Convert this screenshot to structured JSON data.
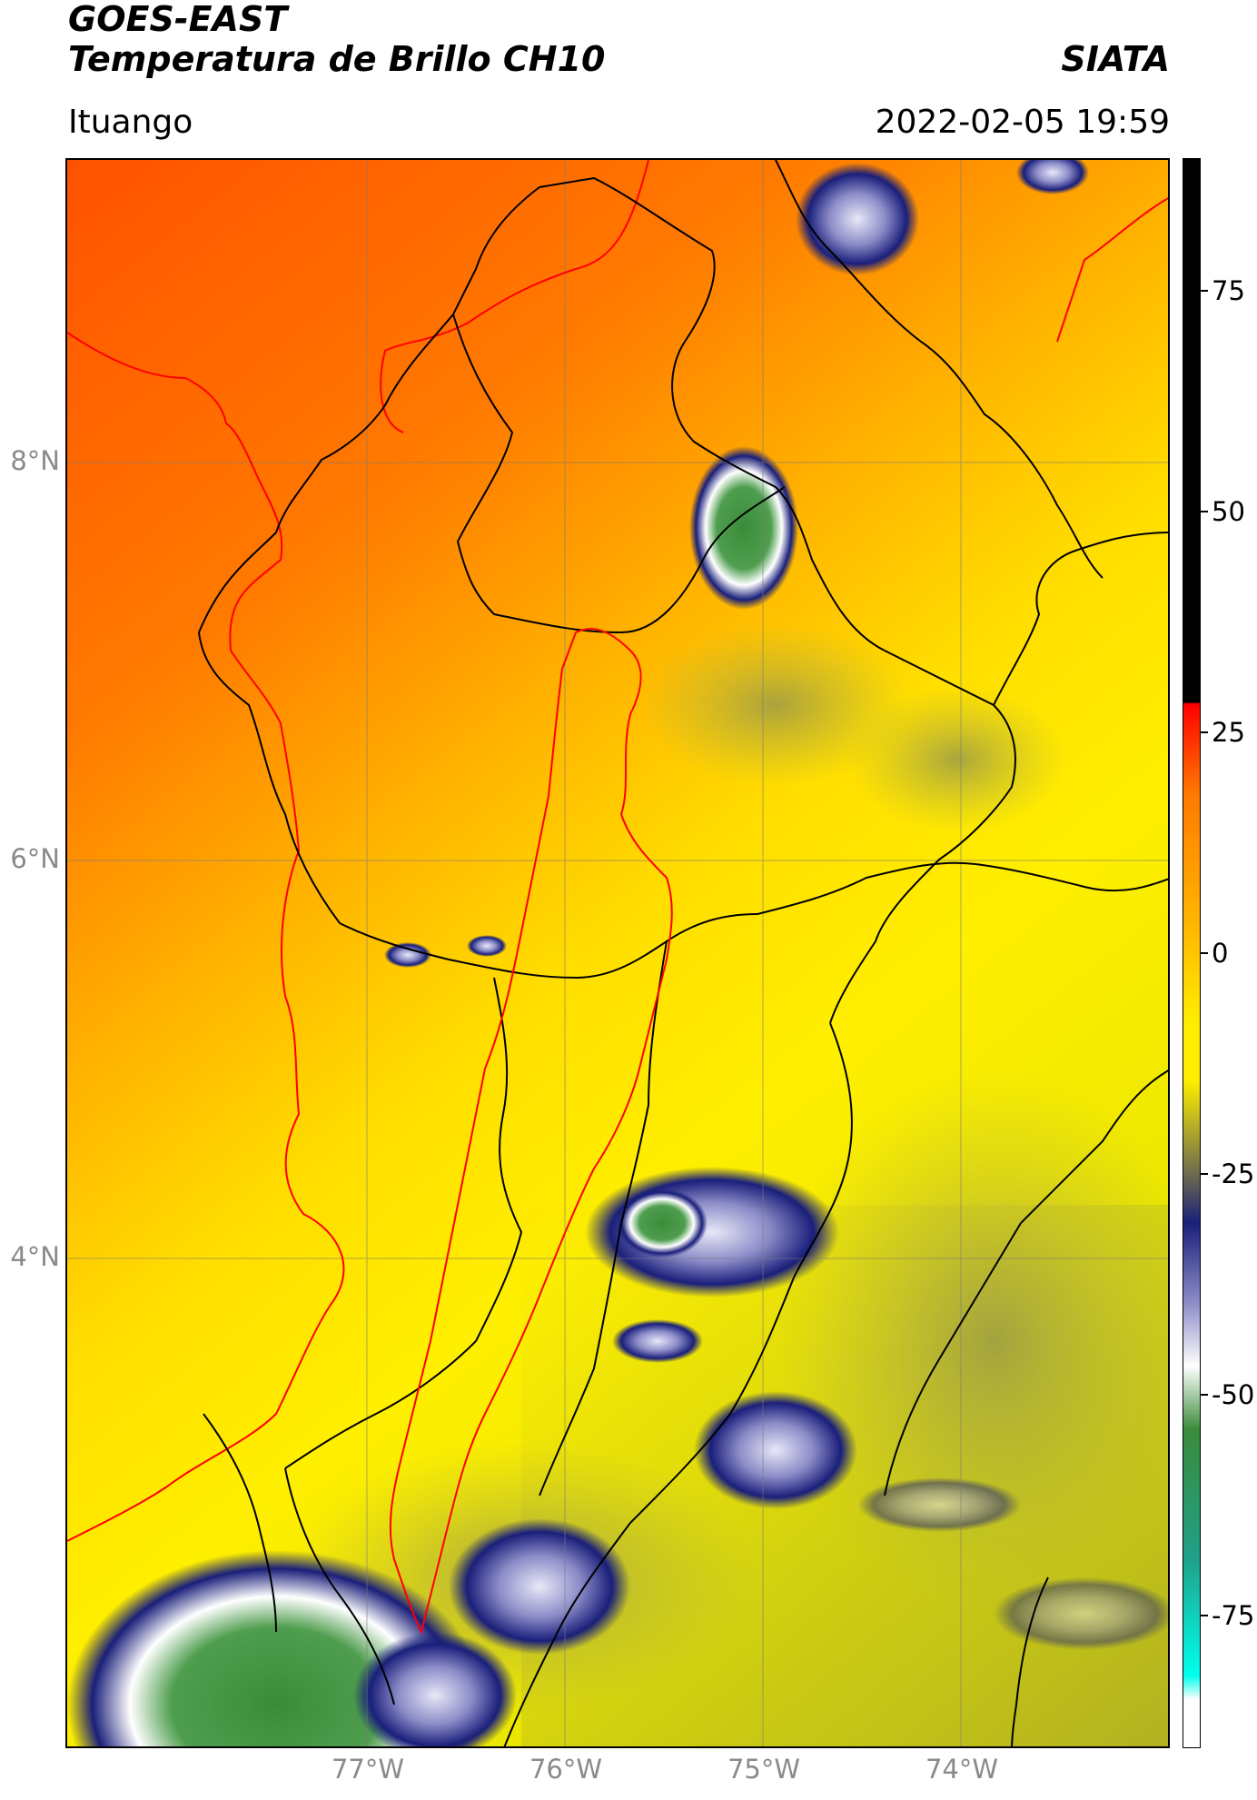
{
  "header": {
    "title_line1": "GOES-EAST",
    "title_line2": "Temperatura de Brillo CH10",
    "organization": "SIATA",
    "region": "Ituango",
    "timestamp": "2022-02-05 19:59"
  },
  "map": {
    "lat_labels": [
      "8°N",
      "6°N",
      "4°N"
    ],
    "lon_labels": [
      "77°W",
      "76°W",
      "75°W",
      "74°W"
    ],
    "colors": {
      "warm": "#ff5a00",
      "orange": "#ff9a00",
      "yellow": "#ffee00",
      "olive": "#b8b840",
      "navy": "#1a1f7a",
      "lightblue": "#c8c8ea",
      "green": "#3a8c3a",
      "teal": "#1fbf9a",
      "boundary": "#000000",
      "basin": "#ff0000"
    }
  },
  "colorbar": {
    "tick_labels": [
      "75",
      "50",
      "25",
      "0",
      "-25",
      "-50",
      "-75"
    ],
    "tick_values": [
      75,
      50,
      25,
      0,
      -25,
      -50,
      -75
    ],
    "range": [
      -90,
      90
    ]
  }
}
